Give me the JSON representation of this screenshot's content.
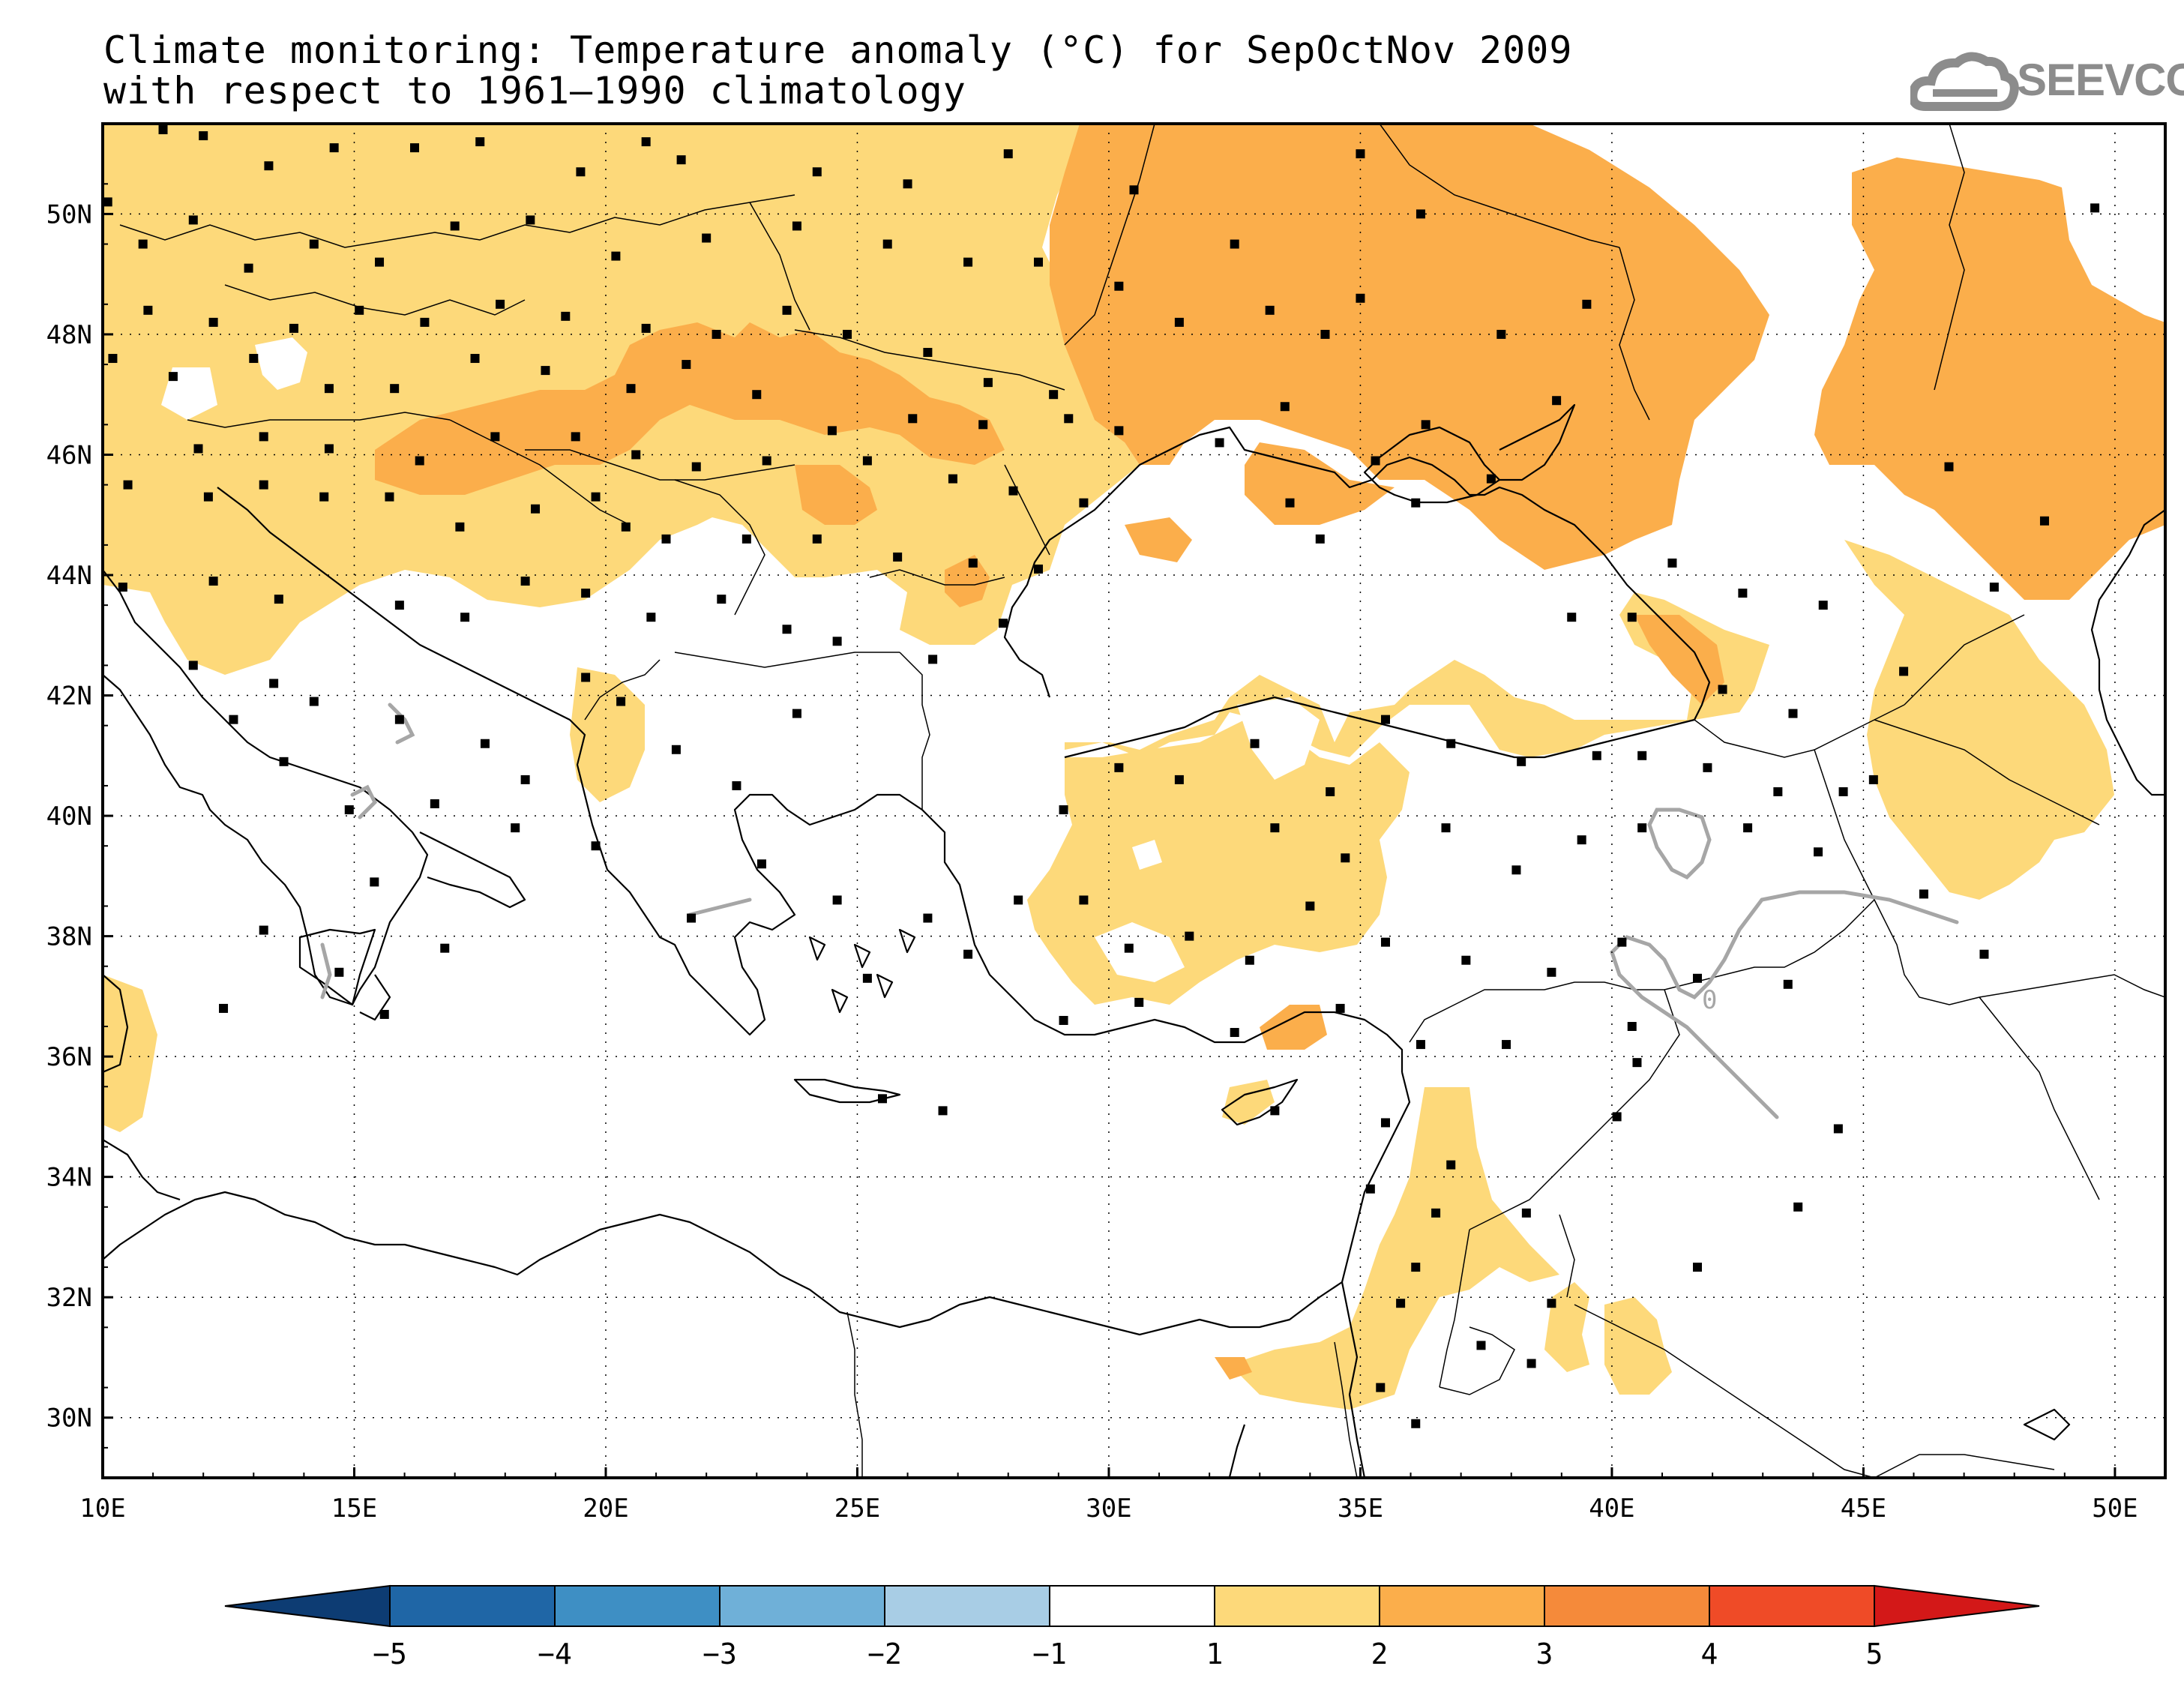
{
  "title": {
    "line1": "Climate monitoring: Temperature anomaly (°C) for SepOctNov 2009",
    "line2": "with respect to 1961–1990 climatology"
  },
  "logo": {
    "text": "SEEVCCC",
    "icon": "cloud-icon",
    "color": "#8c8c8c"
  },
  "map": {
    "lon_range": [
      10,
      51
    ],
    "lat_range": [
      29,
      51.5
    ],
    "lon_ticks": [
      {
        "value": 10,
        "label": "10E"
      },
      {
        "value": 15,
        "label": "15E"
      },
      {
        "value": 20,
        "label": "20E"
      },
      {
        "value": 25,
        "label": "25E"
      },
      {
        "value": 30,
        "label": "30E"
      },
      {
        "value": 35,
        "label": "35E"
      },
      {
        "value": 40,
        "label": "40E"
      },
      {
        "value": 45,
        "label": "45E"
      },
      {
        "value": 50,
        "label": "50E"
      }
    ],
    "lat_ticks": [
      {
        "value": 30,
        "label": "30N"
      },
      {
        "value": 32,
        "label": "32N"
      },
      {
        "value": 34,
        "label": "34N"
      },
      {
        "value": 36,
        "label": "36N"
      },
      {
        "value": 38,
        "label": "38N"
      },
      {
        "value": 40,
        "label": "40N"
      },
      {
        "value": 42,
        "label": "42N"
      },
      {
        "value": 44,
        "label": "44N"
      },
      {
        "value": 46,
        "label": "46N"
      },
      {
        "value": 48,
        "label": "48N"
      },
      {
        "value": 50,
        "label": "50N"
      }
    ],
    "contour_label": "0",
    "stations": [
      [
        10.1,
        50.2
      ],
      [
        11.2,
        51.4
      ],
      [
        12,
        51.3
      ],
      [
        13.3,
        50.8
      ],
      [
        14.6,
        51.1
      ],
      [
        16.2,
        51.1
      ],
      [
        17.5,
        51.2
      ],
      [
        19.5,
        50.7
      ],
      [
        20.8,
        51.2
      ],
      [
        21.5,
        50.9
      ],
      [
        24.2,
        50.7
      ],
      [
        26,
        50.5
      ],
      [
        28,
        51
      ],
      [
        30.5,
        50.4
      ],
      [
        32.5,
        49.5
      ],
      [
        35,
        51
      ],
      [
        36.2,
        50
      ],
      [
        10.8,
        49.5
      ],
      [
        11.8,
        49.9
      ],
      [
        12.9,
        49.1
      ],
      [
        14.2,
        49.5
      ],
      [
        15.5,
        49.2
      ],
      [
        17,
        49.8
      ],
      [
        18.5,
        49.9
      ],
      [
        20.2,
        49.3
      ],
      [
        22,
        49.6
      ],
      [
        23.8,
        49.8
      ],
      [
        25.6,
        49.5
      ],
      [
        27.2,
        49.2
      ],
      [
        28.6,
        49.2
      ],
      [
        30.2,
        48.8
      ],
      [
        31.4,
        48.2
      ],
      [
        33.2,
        48.4
      ],
      [
        34.3,
        48
      ],
      [
        35,
        48.6
      ],
      [
        37.8,
        48
      ],
      [
        39.5,
        48.5
      ],
      [
        10.9,
        48.4
      ],
      [
        12.2,
        48.2
      ],
      [
        13.8,
        48.1
      ],
      [
        15.1,
        48.4
      ],
      [
        16.4,
        48.2
      ],
      [
        17.9,
        48.5
      ],
      [
        19.2,
        48.3
      ],
      [
        20.8,
        48.1
      ],
      [
        22.2,
        48
      ],
      [
        23.6,
        48.4
      ],
      [
        24.8,
        48
      ],
      [
        26.4,
        47.7
      ],
      [
        27.6,
        47.2
      ],
      [
        28.9,
        47
      ],
      [
        10.2,
        47.6
      ],
      [
        11.4,
        47.3
      ],
      [
        13,
        47.6
      ],
      [
        14.5,
        47.1
      ],
      [
        15.8,
        47.1
      ],
      [
        17.4,
        47.6
      ],
      [
        18.8,
        47.4
      ],
      [
        20.5,
        47.1
      ],
      [
        21.6,
        47.5
      ],
      [
        23,
        47
      ],
      [
        24.5,
        46.4
      ],
      [
        26.1,
        46.6
      ],
      [
        27.5,
        46.5
      ],
      [
        29.2,
        46.6
      ],
      [
        30.2,
        46.4
      ],
      [
        11.9,
        46.1
      ],
      [
        13.2,
        46.3
      ],
      [
        14.5,
        46.1
      ],
      [
        16.3,
        45.9
      ],
      [
        17.8,
        46.3
      ],
      [
        19.4,
        46.3
      ],
      [
        20.6,
        46
      ],
      [
        21.8,
        45.8
      ],
      [
        23.2,
        45.9
      ],
      [
        25.2,
        45.9
      ],
      [
        26.9,
        45.6
      ],
      [
        28.1,
        45.4
      ],
      [
        29.5,
        45.2
      ],
      [
        10.5,
        45.5
      ],
      [
        12.1,
        45.3
      ],
      [
        13.2,
        45.5
      ],
      [
        14.4,
        45.3
      ],
      [
        15.7,
        45.3
      ],
      [
        17.1,
        44.8
      ],
      [
        18.6,
        45.1
      ],
      [
        19.8,
        45.3
      ],
      [
        20.4,
        44.8
      ],
      [
        21.2,
        44.6
      ],
      [
        22.8,
        44.6
      ],
      [
        24.2,
        44.6
      ],
      [
        25.8,
        44.3
      ],
      [
        27.3,
        44.2
      ],
      [
        28.6,
        44.1
      ],
      [
        12.2,
        43.9
      ],
      [
        13.5,
        43.6
      ],
      [
        15.9,
        43.5
      ],
      [
        17.2,
        43.3
      ],
      [
        18.4,
        43.9
      ],
      [
        19.6,
        43.7
      ],
      [
        20.9,
        43.3
      ],
      [
        22.3,
        43.6
      ],
      [
        23.6,
        43.1
      ],
      [
        24.6,
        42.9
      ],
      [
        26.5,
        42.6
      ],
      [
        27.9,
        43.2
      ],
      [
        10.4,
        43.8
      ],
      [
        11.8,
        42.5
      ],
      [
        13.4,
        42.2
      ],
      [
        14.2,
        41.9
      ],
      [
        15.9,
        41.6
      ],
      [
        17.6,
        41.2
      ],
      [
        18.4,
        40.6
      ],
      [
        19.6,
        42.3
      ],
      [
        20.3,
        41.9
      ],
      [
        21.4,
        41.1
      ],
      [
        22.6,
        40.5
      ],
      [
        23.8,
        41.7
      ],
      [
        12.6,
        41.6
      ],
      [
        13.6,
        40.9
      ],
      [
        14.9,
        40.1
      ],
      [
        16.6,
        40.2
      ],
      [
        18.2,
        39.8
      ],
      [
        15.4,
        38.9
      ],
      [
        13.2,
        38.1
      ],
      [
        14.7,
        37.4
      ],
      [
        15.6,
        36.7
      ],
      [
        12.4,
        36.8
      ],
      [
        16.8,
        37.8
      ],
      [
        19.8,
        39.5
      ],
      [
        21.7,
        38.3
      ],
      [
        23.1,
        39.2
      ],
      [
        24.6,
        38.6
      ],
      [
        25.2,
        37.3
      ],
      [
        26.4,
        38.3
      ],
      [
        27.2,
        37.7
      ],
      [
        28.2,
        38.6
      ],
      [
        29.1,
        40.1
      ],
      [
        30.2,
        40.8
      ],
      [
        31.4,
        40.6
      ],
      [
        32.9,
        41.2
      ],
      [
        34.4,
        40.4
      ],
      [
        35.5,
        41.6
      ],
      [
        36.8,
        41.2
      ],
      [
        38.2,
        40.9
      ],
      [
        39.7,
        41
      ],
      [
        40.6,
        41
      ],
      [
        41.9,
        40.8
      ],
      [
        43.3,
        40.4
      ],
      [
        33.3,
        39.8
      ],
      [
        34.7,
        39.3
      ],
      [
        36.7,
        39.8
      ],
      [
        38.1,
        39.1
      ],
      [
        39.4,
        39.6
      ],
      [
        40.6,
        39.8
      ],
      [
        42.7,
        39.8
      ],
      [
        44.1,
        39.4
      ],
      [
        29.5,
        38.6
      ],
      [
        30.4,
        37.8
      ],
      [
        31.6,
        38
      ],
      [
        32.8,
        37.6
      ],
      [
        34,
        38.5
      ],
      [
        35.5,
        37.9
      ],
      [
        37.1,
        37.6
      ],
      [
        38.8,
        37.4
      ],
      [
        40.2,
        37.9
      ],
      [
        41.7,
        37.3
      ],
      [
        43.5,
        37.2
      ],
      [
        29.1,
        36.6
      ],
      [
        30.6,
        36.9
      ],
      [
        32.5,
        36.4
      ],
      [
        34.6,
        36.8
      ],
      [
        36.2,
        36.2
      ],
      [
        37.9,
        36.2
      ],
      [
        40.5,
        35.9
      ],
      [
        25.5,
        35.3
      ],
      [
        26.7,
        35.1
      ],
      [
        33.3,
        35.1
      ],
      [
        35.5,
        34.9
      ],
      [
        36.8,
        34.2
      ],
      [
        38.3,
        33.4
      ],
      [
        35.2,
        33.8
      ],
      [
        36.5,
        33.4
      ],
      [
        36.1,
        32.5
      ],
      [
        35.8,
        31.9
      ],
      [
        37.4,
        31.2
      ],
      [
        38.8,
        31.9
      ],
      [
        40.1,
        35
      ],
      [
        41.7,
        32.5
      ],
      [
        43.7,
        33.5
      ],
      [
        44.5,
        34.8
      ],
      [
        35.4,
        30.5
      ],
      [
        36.1,
        29.9
      ],
      [
        38.4,
        30.9
      ],
      [
        40.4,
        36.5
      ],
      [
        43.6,
        41.7
      ],
      [
        44.6,
        40.4
      ],
      [
        45.2,
        40.6
      ],
      [
        46.2,
        38.7
      ],
      [
        47.4,
        37.7
      ],
      [
        49.6,
        50.1
      ],
      [
        47.6,
        43.8
      ],
      [
        48.6,
        44.9
      ],
      [
        45.8,
        42.4
      ],
      [
        46.7,
        45.8
      ],
      [
        44.2,
        43.5
      ],
      [
        40.4,
        43.3
      ],
      [
        42.6,
        43.7
      ],
      [
        39.2,
        43.3
      ],
      [
        41.2,
        44.2
      ],
      [
        42.2,
        42.1
      ],
      [
        34.2,
        44.6
      ],
      [
        33.6,
        45.2
      ],
      [
        36.1,
        45.2
      ],
      [
        37.6,
        45.6
      ],
      [
        35.3,
        45.9
      ],
      [
        32.2,
        46.2
      ],
      [
        33.5,
        46.8
      ],
      [
        36.3,
        46.5
      ],
      [
        38.9,
        46.9
      ]
    ],
    "colors": {
      "band_1_2": "#fdd97a",
      "band_2_3": "#fbae4b",
      "land_line": "#000000",
      "contour": "#a6a6a6"
    }
  },
  "colorbar": {
    "labels": [
      "−5",
      "−4",
      "−3",
      "−2",
      "−1",
      "1",
      "2",
      "3",
      "4",
      "5"
    ],
    "colors": [
      "#0d3c73",
      "#1f66a6",
      "#3e8fc4",
      "#6fb0d8",
      "#a8cde5",
      "#ffffff",
      "#fdd97a",
      "#fbae4b",
      "#f58a3a",
      "#ef4b27",
      "#d31818"
    ]
  }
}
